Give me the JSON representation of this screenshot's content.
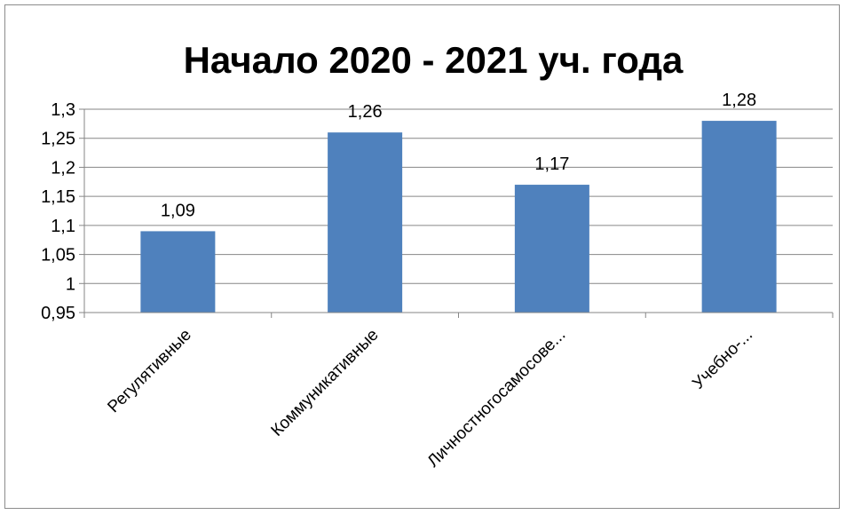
{
  "chart_data": {
    "type": "bar",
    "title": "Начало 2020 - 2021 уч. года",
    "categories": [
      "Регулятивные",
      "Коммуникативные",
      "Личностногосамосове...",
      "Учебно-..."
    ],
    "values": [
      1.09,
      1.26,
      1.17,
      1.28
    ],
    "data_labels": [
      "1,09",
      "1,26",
      "1,17",
      "1,28"
    ],
    "ylim": [
      0.95,
      1.3
    ],
    "y_ticks": [
      0.95,
      1,
      1.05,
      1.1,
      1.15,
      1.2,
      1.25,
      1.3
    ],
    "y_tick_labels": [
      "0,95",
      "1",
      "1,05",
      "1,1",
      "1,15",
      "1,2",
      "1,25",
      "1,3"
    ],
    "xlabel": "",
    "ylabel": "",
    "grid": true,
    "legend": "none",
    "bar_color": "#4F81BD",
    "grid_color": "#868686"
  }
}
